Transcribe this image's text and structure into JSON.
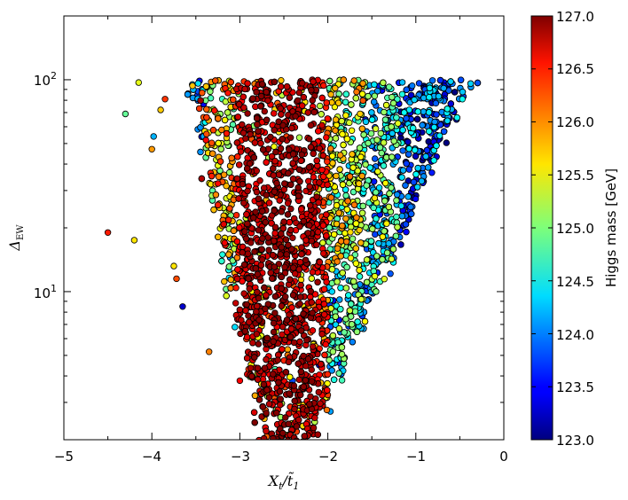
{
  "chart_data": {
    "type": "scatter",
    "xlabel": "X_t/t̃_1",
    "ylabel": "Δ_EW",
    "x_ticks": [
      "−5",
      "−4",
      "−3",
      "−2",
      "−1",
      "0"
    ],
    "y_ticks": [
      "10^1",
      "10^2"
    ],
    "xlim": [
      -5,
      0
    ],
    "ylim": [
      2,
      200
    ],
    "y_scale": "log",
    "colorbar": {
      "label": "Higgs mass [GeV]",
      "range": [
        123.0,
        127.0
      ],
      "ticks": [
        "123.0",
        "123.5",
        "124.0",
        "124.5",
        "125.0",
        "125.5",
        "126.0",
        "126.5",
        "127.0"
      ],
      "colormap": "jet"
    },
    "marker": {
      "edge_color": "#000000"
    },
    "sample_points": [
      {
        "x": -4.5,
        "y": 19,
        "m": 126.4
      },
      {
        "x": -4.2,
        "y": 17.5,
        "m": 125.6
      },
      {
        "x": -4.3,
        "y": 69,
        "m": 124.9
      },
      {
        "x": -4.15,
        "y": 97,
        "m": 125.4
      },
      {
        "x": -3.9,
        "y": 72,
        "m": 125.7
      },
      {
        "x": -3.85,
        "y": 81,
        "m": 126.3
      },
      {
        "x": -3.98,
        "y": 54,
        "m": 124.2
      },
      {
        "x": -4.0,
        "y": 47,
        "m": 125.9
      },
      {
        "x": -3.75,
        "y": 13.2,
        "m": 125.6
      },
      {
        "x": -3.72,
        "y": 11.5,
        "m": 126.2
      },
      {
        "x": -3.65,
        "y": 8.5,
        "m": 123.3
      },
      {
        "x": -3.35,
        "y": 5.2,
        "m": 126.0
      },
      {
        "x": -3.0,
        "y": 3.8,
        "m": 126.5
      },
      {
        "x": -2.6,
        "y": 4.3,
        "m": 124.8
      },
      {
        "x": -2.4,
        "y": 3.8,
        "m": 123.8
      },
      {
        "x": -2.1,
        "y": 4.5,
        "m": 123.2
      },
      {
        "x": -2.8,
        "y": 4.1,
        "m": 125.5
      },
      {
        "x": -2.9,
        "y": 4.3,
        "m": 126.3
      }
    ]
  }
}
